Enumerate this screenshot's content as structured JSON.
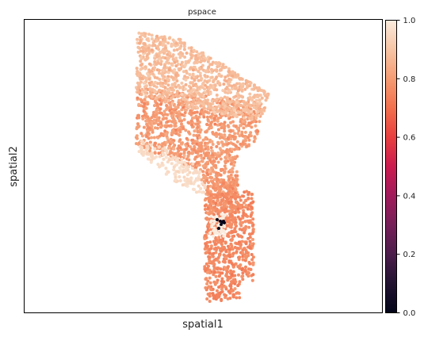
{
  "chart_data": {
    "type": "scatter",
    "title": "pspace",
    "xlabel": "spatial1",
    "ylabel": "spatial2",
    "colorbar": {
      "ticks": [
        "0.0",
        "0.2",
        "0.4",
        "0.6",
        "0.8",
        "1.0"
      ],
      "range": [
        0.0,
        1.0
      ],
      "colormap": "rocket"
    },
    "groups": [
      {
        "region": "upper band",
        "value": 0.88
      },
      {
        "region": "middle band",
        "value": 0.8
      },
      {
        "region": "left diagonal strip",
        "value": 0.96
      },
      {
        "region": "neck",
        "value": 0.78
      },
      {
        "region": "lower column",
        "value": 0.76
      },
      {
        "region": "black cluster",
        "value": 0.0
      }
    ],
    "frame": "black"
  }
}
